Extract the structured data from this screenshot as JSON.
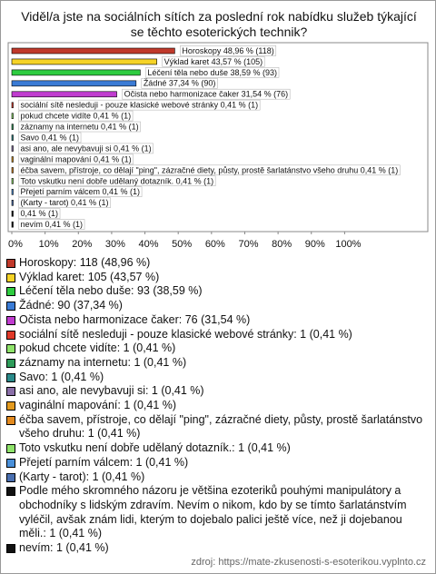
{
  "chart_data": {
    "type": "bar",
    "orientation": "horizontal",
    "title": "Viděl/a jste na sociálních sítích za poslední rok nabídku služeb týkající se těchto esoterických technik?",
    "values": [
      48.96,
      43.57,
      38.59,
      37.34,
      31.54,
      0.41,
      0.41,
      0.41,
      0.41,
      0.41,
      0.41,
      0.41,
      0.41,
      0.41,
      0.41,
      0.41,
      0.41
    ],
    "value_labels": [
      "Horoskopy 48,96 % (118)",
      "Výklad karet 43,57 % (105)",
      "Léčení těla nebo duše 38,59 % (93)",
      "Žádné 37,34 % (90)",
      "Očista nebo harmonizace čaker 31,54 % (76)",
      "sociální sítě nesleduji - pouze klasické webové stránky 0,41 % (1)",
      "pokud chcete vidíte 0,41 % (1)",
      "záznamy na internetu 0,41 % (1)",
      "Savo 0,41 % (1)",
      "asi ano, ale nevybavuji si 0,41 % (1)",
      "vaginální mapování 0,41 % (1)",
      "éčba savem, přístroje, co dělají \"ping\", zázračné diety, půsty, prostě šarlatánstvo všeho druhu 0,41 % (1)",
      "Toto vskutku není dobře udělaný dotazník. 0,41 % (1)",
      "Přejetí parním válcem 0,41 % (1)",
      "(Karty - tarot) 0,41 % (1)",
      "0,41 % (1)",
      "nevím 0,41 % (1)"
    ],
    "legend_labels": [
      "Horoskopy: 118 (48,96 %)",
      "Výklad karet: 105 (43,57 %)",
      "Léčení těla nebo duše: 93 (38,59 %)",
      "Žádné: 90 (37,34 %)",
      "Očista nebo harmonizace čaker: 76 (31,54 %)",
      "sociální sítě nesleduji - pouze klasické webové stránky: 1 (0,41 %)",
      "pokud chcete vidíte: 1 (0,41 %)",
      "záznamy na internetu: 1 (0,41 %)",
      "Savo: 1 (0,41 %)",
      "asi ano, ale nevybavuji si: 1 (0,41 %)",
      "vaginální mapování: 1 (0,41 %)",
      "éčba savem, přístroje, co dělají \"ping\", zázračné diety, půsty, prostě šarlatánstvo všeho druhu: 1 (0,41 %)",
      "Toto vskutku není dobře udělaný dotazník.: 1 (0,41 %)",
      "Přejetí parním válcem: 1 (0,41 %)",
      "(Karty - tarot): 1 (0,41 %)",
      "Podle mého skromného názoru je většina ezoteriků pouhými manipulátory a obchodníky s lidským zdravím. Nevím o nikom, kdo by se tímto šarlatánstvím vyléčil, avšak znám lidi, kterým to dojebalo palici ještě více, než ji dojebanou měli.: 1 (0,41 %)",
      "nevím: 1 (0,41 %)"
    ],
    "colors": [
      "#c0392b",
      "#f5d327",
      "#2ecc40",
      "#3a7bd5",
      "#c03ccf",
      "#e03a2a",
      "#8fe36a",
      "#2e9c5a",
      "#2a8a8a",
      "#8a6fa8",
      "#e39a1f",
      "#e38a1f",
      "#8fe36a",
      "#4a90d9",
      "#4a6fb0",
      "#111111",
      "#111111"
    ],
    "xlim": [
      0,
      125
    ],
    "xticks": [
      {
        "value": 0,
        "label": "0%"
      },
      {
        "value": 10,
        "label": "10%"
      },
      {
        "value": 20,
        "label": "20%"
      },
      {
        "value": 30,
        "label": "30%"
      },
      {
        "value": 40,
        "label": "40%"
      },
      {
        "value": 50,
        "label": "50%"
      },
      {
        "value": 60,
        "label": "60%"
      },
      {
        "value": 70,
        "label": "70%"
      },
      {
        "value": 80,
        "label": "80%"
      },
      {
        "value": 90,
        "label": "90%"
      },
      {
        "value": 100,
        "label": "100%"
      }
    ],
    "source": "zdroj: https://mate-zkusenosti-s-esoterikou.vyplnto.cz"
  }
}
